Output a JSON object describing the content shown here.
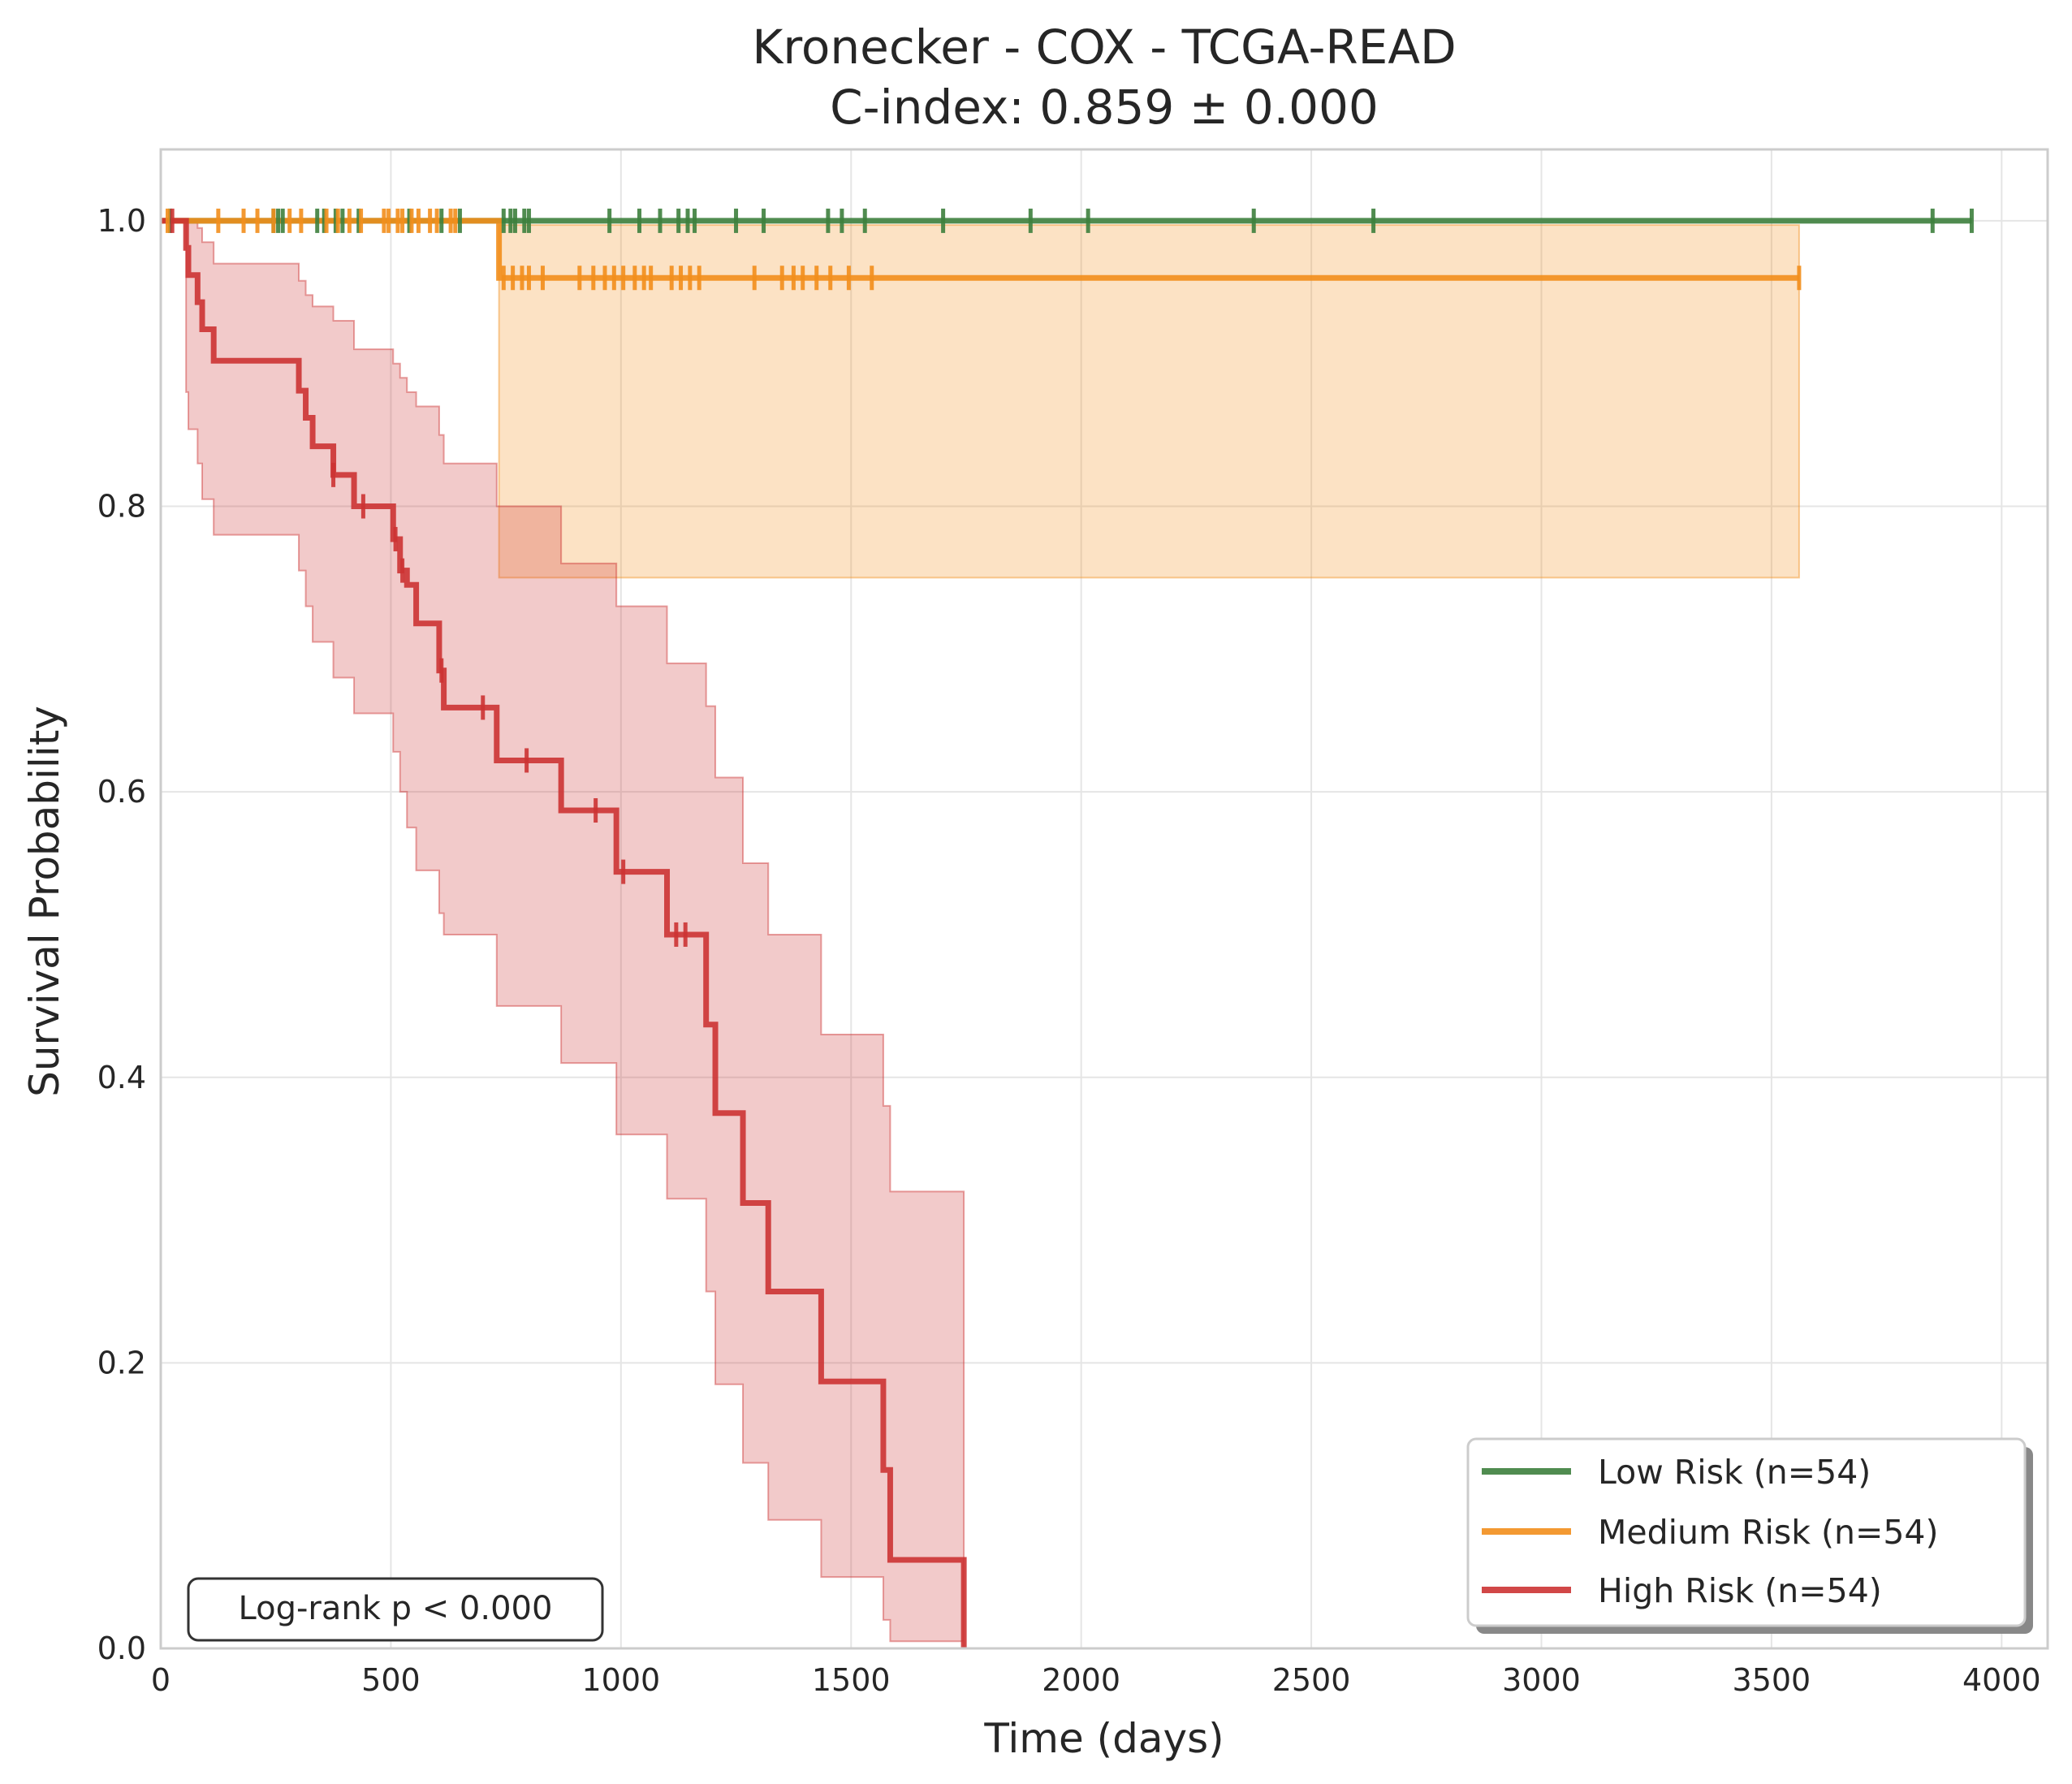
{
  "chart_data": {
    "type": "line",
    "title_line1": "Kronecker - COX - TCGA-READ",
    "title_line2": "C-index: 0.859 ± 0.000",
    "xlabel": "Time (days)",
    "ylabel": "Survival Probability",
    "xlim": [
      0,
      4100
    ],
    "ylim": [
      0,
      1.05
    ],
    "xticks": [
      0,
      500,
      1000,
      1500,
      2000,
      2500,
      3000,
      3500,
      4000
    ],
    "xtick_labels": [
      "0",
      "500",
      "1000",
      "1500",
      "2000",
      "2500",
      "3000",
      "3500",
      "4000"
    ],
    "yticks": [
      0.0,
      0.2,
      0.4,
      0.6,
      0.8,
      1.0
    ],
    "ytick_labels": [
      "0.0",
      "0.2",
      "0.4",
      "0.6",
      "0.8",
      "1.0"
    ],
    "grid": true,
    "legend_position": "lower-right",
    "annotation": "Log-rank p < 0.000",
    "series": [
      {
        "name": "Low Risk (n=54)",
        "color": "#3d7f3d",
        "steps": [
          [
            0,
            1.0
          ],
          [
            3935,
            1.0
          ]
        ],
        "ci_lower": [],
        "ci_upper": [],
        "censor_times": [
          20,
          245,
          255,
          265,
          340,
          355,
          380,
          395,
          430,
          540,
          610,
          650,
          745,
          760,
          770,
          790,
          800,
          975,
          1040,
          1085,
          1125,
          1145,
          1160,
          1250,
          1310,
          1450,
          1480,
          1530,
          1700,
          1890,
          2015,
          2375,
          2635,
          3850,
          3935
        ]
      },
      {
        "name": "Medium Risk (n=54)",
        "color": "#f28e1c",
        "steps": [
          [
            0,
            1.0
          ],
          [
            735,
            1.0
          ],
          [
            735,
            0.96
          ],
          [
            3560,
            0.96
          ]
        ],
        "ci_lower": [
          [
            735,
            0.75
          ],
          [
            3560,
            0.75
          ]
        ],
        "ci_upper": [
          [
            735,
            0.997
          ],
          [
            3560,
            0.997
          ]
        ],
        "censor_times": [
          15,
          125,
          180,
          210,
          245,
          280,
          305,
          360,
          385,
          410,
          435,
          485,
          495,
          515,
          525,
          545,
          560,
          585,
          600,
          630,
          640,
          745,
          765,
          785,
          800,
          830,
          910,
          940,
          965,
          985,
          1005,
          1030,
          1050,
          1065,
          1110,
          1130,
          1150,
          1170,
          1290,
          1350,
          1375,
          1395,
          1425,
          1455,
          1495,
          1545,
          3560
        ]
      },
      {
        "name": "High Risk (n=54)",
        "color": "#cc3333",
        "steps": [
          [
            0,
            1.0
          ],
          [
            55,
            1.0
          ],
          [
            55,
            0.981
          ],
          [
            60,
            0.981
          ],
          [
            60,
            0.962
          ],
          [
            80,
            0.962
          ],
          [
            80,
            0.943
          ],
          [
            90,
            0.943
          ],
          [
            90,
            0.924
          ],
          [
            115,
            0.924
          ],
          [
            115,
            0.902
          ],
          [
            300,
            0.902
          ],
          [
            300,
            0.881
          ],
          [
            315,
            0.881
          ],
          [
            315,
            0.862
          ],
          [
            330,
            0.862
          ],
          [
            330,
            0.842
          ],
          [
            375,
            0.842
          ],
          [
            375,
            0.822
          ],
          [
            420,
            0.822
          ],
          [
            420,
            0.8
          ],
          [
            505,
            0.8
          ],
          [
            505,
            0.777
          ],
          [
            520,
            0.777
          ],
          [
            520,
            0.755
          ],
          [
            535,
            0.755
          ],
          [
            535,
            0.745
          ],
          [
            555,
            0.745
          ],
          [
            555,
            0.718
          ],
          [
            605,
            0.718
          ],
          [
            605,
            0.685
          ],
          [
            615,
            0.685
          ],
          [
            615,
            0.659
          ],
          [
            730,
            0.659
          ],
          [
            730,
            0.622
          ],
          [
            870,
            0.622
          ],
          [
            870,
            0.587
          ],
          [
            990,
            0.587
          ],
          [
            990,
            0.544
          ],
          [
            1100,
            0.544
          ],
          [
            1100,
            0.5
          ],
          [
            1185,
            0.5
          ],
          [
            1185,
            0.437
          ],
          [
            1205,
            0.437
          ],
          [
            1205,
            0.375
          ],
          [
            1265,
            0.375
          ],
          [
            1265,
            0.312
          ],
          [
            1320,
            0.312
          ],
          [
            1320,
            0.25
          ],
          [
            1435,
            0.25
          ],
          [
            1435,
            0.187
          ],
          [
            1570,
            0.187
          ],
          [
            1570,
            0.125
          ],
          [
            1585,
            0.125
          ],
          [
            1585,
            0.062
          ],
          [
            1745,
            0.062
          ],
          [
            1745,
            0.0
          ]
        ],
        "ci_lower": [
          [
            55,
            0.88
          ],
          [
            60,
            0.854
          ],
          [
            80,
            0.83
          ],
          [
            90,
            0.805
          ],
          [
            115,
            0.78
          ],
          [
            300,
            0.755
          ],
          [
            315,
            0.73
          ],
          [
            330,
            0.705
          ],
          [
            375,
            0.68
          ],
          [
            420,
            0.655
          ],
          [
            505,
            0.628
          ],
          [
            520,
            0.6
          ],
          [
            535,
            0.575
          ],
          [
            555,
            0.545
          ],
          [
            605,
            0.515
          ],
          [
            615,
            0.5
          ],
          [
            730,
            0.45
          ],
          [
            870,
            0.41
          ],
          [
            990,
            0.36
          ],
          [
            1100,
            0.315
          ],
          [
            1185,
            0.25
          ],
          [
            1205,
            0.185
          ],
          [
            1265,
            0.13
          ],
          [
            1320,
            0.09
          ],
          [
            1435,
            0.05
          ],
          [
            1570,
            0.02
          ],
          [
            1585,
            0.005
          ],
          [
            1745,
            0.0
          ]
        ],
        "ci_upper": [
          [
            55,
            1.0
          ],
          [
            60,
            1.0
          ],
          [
            80,
            0.995
          ],
          [
            90,
            0.985
          ],
          [
            115,
            0.97
          ],
          [
            300,
            0.958
          ],
          [
            315,
            0.948
          ],
          [
            330,
            0.94
          ],
          [
            375,
            0.93
          ],
          [
            420,
            0.91
          ],
          [
            505,
            0.9
          ],
          [
            520,
            0.89
          ],
          [
            535,
            0.88
          ],
          [
            555,
            0.87
          ],
          [
            605,
            0.85
          ],
          [
            615,
            0.83
          ],
          [
            730,
            0.8
          ],
          [
            870,
            0.76
          ],
          [
            990,
            0.73
          ],
          [
            1100,
            0.69
          ],
          [
            1185,
            0.66
          ],
          [
            1205,
            0.61
          ],
          [
            1265,
            0.55
          ],
          [
            1320,
            0.5
          ],
          [
            1435,
            0.43
          ],
          [
            1570,
            0.38
          ],
          [
            1585,
            0.32
          ],
          [
            1745,
            0.24
          ]
        ],
        "censor_times": [
          25,
          375,
          440,
          510,
          525,
          610,
          700,
          795,
          945,
          1005,
          1120,
          1140
        ]
      }
    ]
  }
}
